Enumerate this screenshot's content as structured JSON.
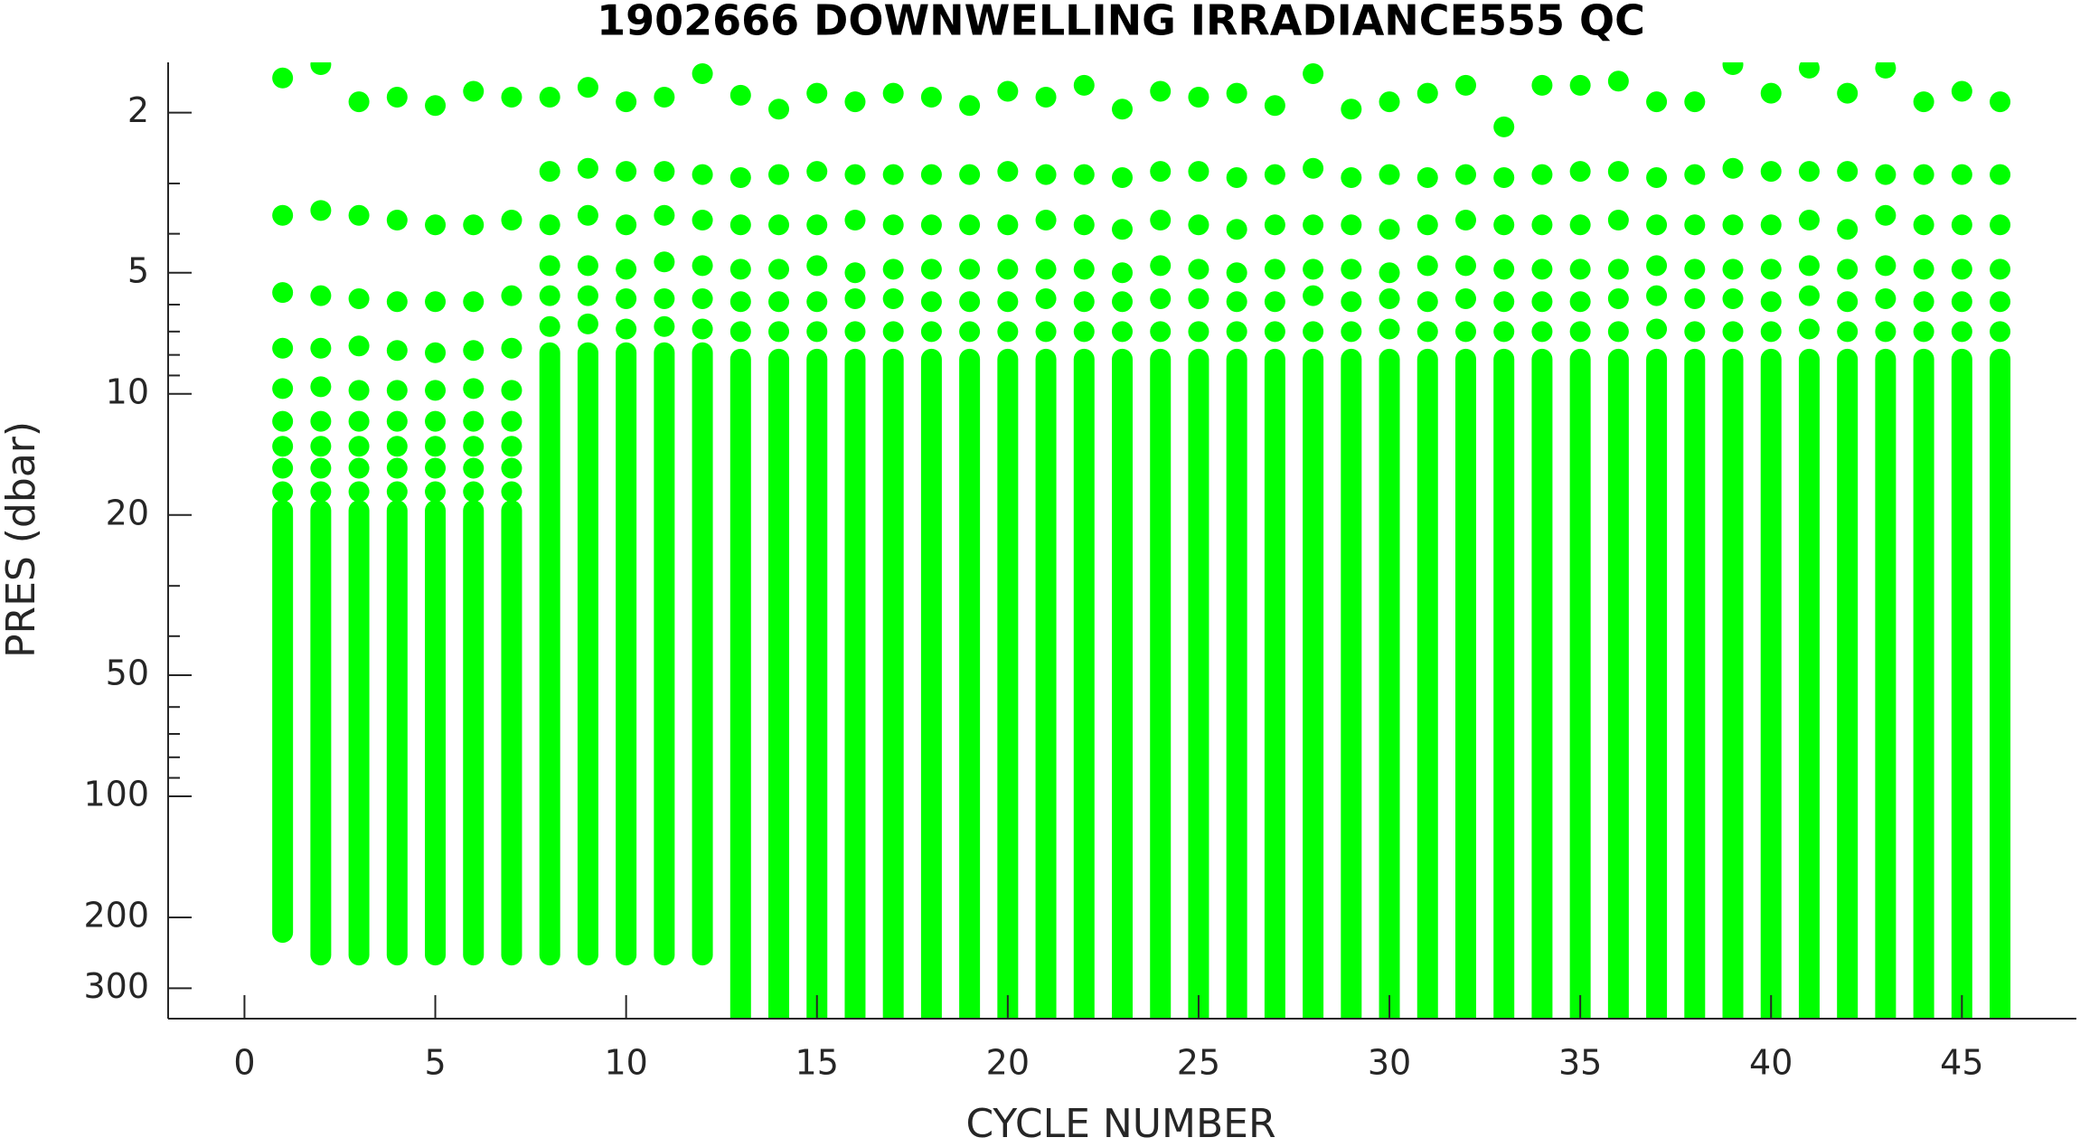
{
  "chart_data": {
    "type": "scatter",
    "title": "1902666  DOWNWELLING IRRADIANCE555 QC",
    "xlabel": "CYCLE NUMBER",
    "ylabel": "PRES (dbar)",
    "color": "#00ff00",
    "xlim": [
      -2,
      48
    ],
    "ylim": [
      1.5,
      357
    ],
    "yscale": "log",
    "yreversed": true,
    "xticks": [
      0,
      5,
      10,
      15,
      20,
      25,
      30,
      35,
      40,
      45
    ],
    "yticks": [
      2,
      5,
      10,
      20,
      50,
      100,
      200,
      300
    ],
    "yminorticks": [
      3,
      4,
      6,
      7,
      8,
      9,
      30,
      40,
      60,
      70,
      80,
      90
    ],
    "profiles": [
      {
        "x": 1,
        "y": [
          1.64,
          3.6,
          5.6,
          7.7,
          9.7,
          11.7,
          13.5,
          15.3,
          17.5
        ],
        "dense_y": [
          19.5,
          218
        ]
      },
      {
        "x": 2,
        "y": [
          1.52,
          3.5,
          5.7,
          7.7,
          9.6,
          11.7,
          13.5,
          15.3,
          17.5
        ],
        "dense_y": [
          19.5,
          248
        ]
      },
      {
        "x": 3,
        "y": [
          1.88,
          3.6,
          5.8,
          7.6,
          9.8,
          11.7,
          13.5,
          15.3,
          17.5
        ],
        "dense_y": [
          19.5,
          248
        ]
      },
      {
        "x": 4,
        "y": [
          1.83,
          3.7,
          5.9,
          7.8,
          9.8,
          11.7,
          13.5,
          15.3,
          17.5
        ],
        "dense_y": [
          19.5,
          248
        ]
      },
      {
        "x": 5,
        "y": [
          1.92,
          3.8,
          5.9,
          7.9,
          9.8,
          11.7,
          13.5,
          15.3,
          17.5
        ],
        "dense_y": [
          19.5,
          248
        ]
      },
      {
        "x": 6,
        "y": [
          1.77,
          3.8,
          5.9,
          7.8,
          9.7,
          11.7,
          13.5,
          15.3,
          17.5
        ],
        "dense_y": [
          19.5,
          248
        ]
      },
      {
        "x": 7,
        "y": [
          1.83,
          3.7,
          5.7,
          7.7,
          9.8,
          11.7,
          13.5,
          15.3,
          17.5
        ],
        "dense_y": [
          19.5,
          248
        ]
      },
      {
        "x": 8,
        "y": [
          1.83,
          2.8,
          3.8,
          4.8,
          5.7,
          6.8
        ],
        "dense_y": [
          7.9,
          248
        ]
      },
      {
        "x": 9,
        "y": [
          1.73,
          2.75,
          3.6,
          4.8,
          5.7,
          6.7
        ],
        "dense_y": [
          7.9,
          248
        ]
      },
      {
        "x": 10,
        "y": [
          1.88,
          2.8,
          3.8,
          4.9,
          5.8,
          6.9
        ],
        "dense_y": [
          7.9,
          248
        ]
      },
      {
        "x": 11,
        "y": [
          1.83,
          2.8,
          3.6,
          4.7,
          5.8,
          6.8
        ],
        "dense_y": [
          7.9,
          248
        ]
      },
      {
        "x": 12,
        "y": [
          1.6,
          2.85,
          3.7,
          4.8,
          5.8,
          6.9
        ],
        "dense_y": [
          7.9,
          248
        ]
      },
      {
        "x": 13,
        "y": [
          1.81,
          2.9,
          3.8,
          4.9,
          5.9,
          7.0
        ],
        "dense_y": [
          8.2,
          360
        ]
      },
      {
        "x": 14,
        "y": [
          1.96,
          2.85,
          3.8,
          4.9,
          5.9,
          7.0
        ],
        "dense_y": [
          8.2,
          360
        ]
      },
      {
        "x": 15,
        "y": [
          1.79,
          2.8,
          3.8,
          4.8,
          5.9,
          7.0
        ],
        "dense_y": [
          8.2,
          360
        ]
      },
      {
        "x": 16,
        "y": [
          1.88,
          2.85,
          3.7,
          5.0,
          5.8,
          7.0
        ],
        "dense_y": [
          8.2,
          360
        ]
      },
      {
        "x": 17,
        "y": [
          1.79,
          2.85,
          3.8,
          4.9,
          5.8,
          7.0
        ],
        "dense_y": [
          8.2,
          360
        ]
      },
      {
        "x": 18,
        "y": [
          1.83,
          2.85,
          3.8,
          4.9,
          5.9,
          7.0
        ],
        "dense_y": [
          8.2,
          360
        ]
      },
      {
        "x": 19,
        "y": [
          1.92,
          2.85,
          3.8,
          4.9,
          5.9,
          7.0
        ],
        "dense_y": [
          8.2,
          360
        ]
      },
      {
        "x": 20,
        "y": [
          1.77,
          2.8,
          3.8,
          4.9,
          5.9,
          7.0
        ],
        "dense_y": [
          8.2,
          360
        ]
      },
      {
        "x": 21,
        "y": [
          1.83,
          2.85,
          3.7,
          4.9,
          5.8,
          7.0
        ],
        "dense_y": [
          8.2,
          360
        ]
      },
      {
        "x": 22,
        "y": [
          1.71,
          2.85,
          3.8,
          4.9,
          5.9,
          7.0
        ],
        "dense_y": [
          8.2,
          360
        ]
      },
      {
        "x": 23,
        "y": [
          1.96,
          2.9,
          3.9,
          5.0,
          5.9,
          7.0
        ],
        "dense_y": [
          8.2,
          360
        ]
      },
      {
        "x": 24,
        "y": [
          1.77,
          2.8,
          3.7,
          4.8,
          5.8,
          7.0
        ],
        "dense_y": [
          8.2,
          360
        ]
      },
      {
        "x": 25,
        "y": [
          1.83,
          2.8,
          3.8,
          4.9,
          5.8,
          7.0
        ],
        "dense_y": [
          8.2,
          360
        ]
      },
      {
        "x": 26,
        "y": [
          1.79,
          2.9,
          3.9,
          5.0,
          5.9,
          7.0
        ],
        "dense_y": [
          8.2,
          360
        ]
      },
      {
        "x": 27,
        "y": [
          1.92,
          2.85,
          3.8,
          4.9,
          5.9,
          7.0
        ],
        "dense_y": [
          8.2,
          360
        ]
      },
      {
        "x": 28,
        "y": [
          1.6,
          2.75,
          3.8,
          4.9,
          5.7,
          7.0
        ],
        "dense_y": [
          8.2,
          360
        ]
      },
      {
        "x": 29,
        "y": [
          1.96,
          2.9,
          3.8,
          4.9,
          5.9,
          7.0
        ],
        "dense_y": [
          8.2,
          360
        ]
      },
      {
        "x": 30,
        "y": [
          1.88,
          2.85,
          3.9,
          5.0,
          5.8,
          6.9
        ],
        "dense_y": [
          8.2,
          360
        ]
      },
      {
        "x": 31,
        "y": [
          1.79,
          2.9,
          3.8,
          4.8,
          5.9,
          7.0
        ],
        "dense_y": [
          8.2,
          360
        ]
      },
      {
        "x": 32,
        "y": [
          1.71,
          2.85,
          3.7,
          4.8,
          5.8,
          7.0
        ],
        "dense_y": [
          8.2,
          360
        ]
      },
      {
        "x": 33,
        "y": [
          2.17,
          2.9,
          3.8,
          4.9,
          5.9,
          7.0
        ],
        "dense_y": [
          8.2,
          360
        ]
      },
      {
        "x": 34,
        "y": [
          1.71,
          2.85,
          3.8,
          4.9,
          5.9,
          7.0
        ],
        "dense_y": [
          8.2,
          360
        ]
      },
      {
        "x": 35,
        "y": [
          1.71,
          2.8,
          3.8,
          4.9,
          5.9,
          7.0
        ],
        "dense_y": [
          8.2,
          360
        ]
      },
      {
        "x": 36,
        "y": [
          1.67,
          2.8,
          3.7,
          4.9,
          5.8,
          7.0
        ],
        "dense_y": [
          8.2,
          360
        ]
      },
      {
        "x": 37,
        "y": [
          1.88,
          2.9,
          3.8,
          4.8,
          5.7,
          6.9
        ],
        "dense_y": [
          8.2,
          360
        ]
      },
      {
        "x": 38,
        "y": [
          1.88,
          2.85,
          3.8,
          4.9,
          5.8,
          7.0
        ],
        "dense_y": [
          8.2,
          360
        ]
      },
      {
        "x": 39,
        "y": [
          1.52,
          2.75,
          3.8,
          4.9,
          5.8,
          7.0
        ],
        "dense_y": [
          8.2,
          360
        ]
      },
      {
        "x": 40,
        "y": [
          1.79,
          2.8,
          3.8,
          4.9,
          5.9,
          7.0
        ],
        "dense_y": [
          8.2,
          360
        ]
      },
      {
        "x": 41,
        "y": [
          1.55,
          2.8,
          3.7,
          4.8,
          5.7,
          6.9
        ],
        "dense_y": [
          8.2,
          360
        ]
      },
      {
        "x": 42,
        "y": [
          1.79,
          2.8,
          3.9,
          4.9,
          5.9,
          7.0
        ],
        "dense_y": [
          8.2,
          360
        ]
      },
      {
        "x": 43,
        "y": [
          1.55,
          2.85,
          3.6,
          4.8,
          5.8,
          7.0
        ],
        "dense_y": [
          8.2,
          360
        ]
      },
      {
        "x": 44,
        "y": [
          1.88,
          2.85,
          3.8,
          4.9,
          5.9,
          7.0
        ],
        "dense_y": [
          8.2,
          360
        ]
      },
      {
        "x": 45,
        "y": [
          1.77,
          2.85,
          3.8,
          4.9,
          5.9,
          7.0
        ],
        "dense_y": [
          8.2,
          360
        ]
      },
      {
        "x": 46,
        "y": [
          1.88,
          2.85,
          3.8,
          4.9,
          5.9,
          7.0
        ],
        "dense_y": [
          8.2,
          360
        ]
      }
    ]
  }
}
